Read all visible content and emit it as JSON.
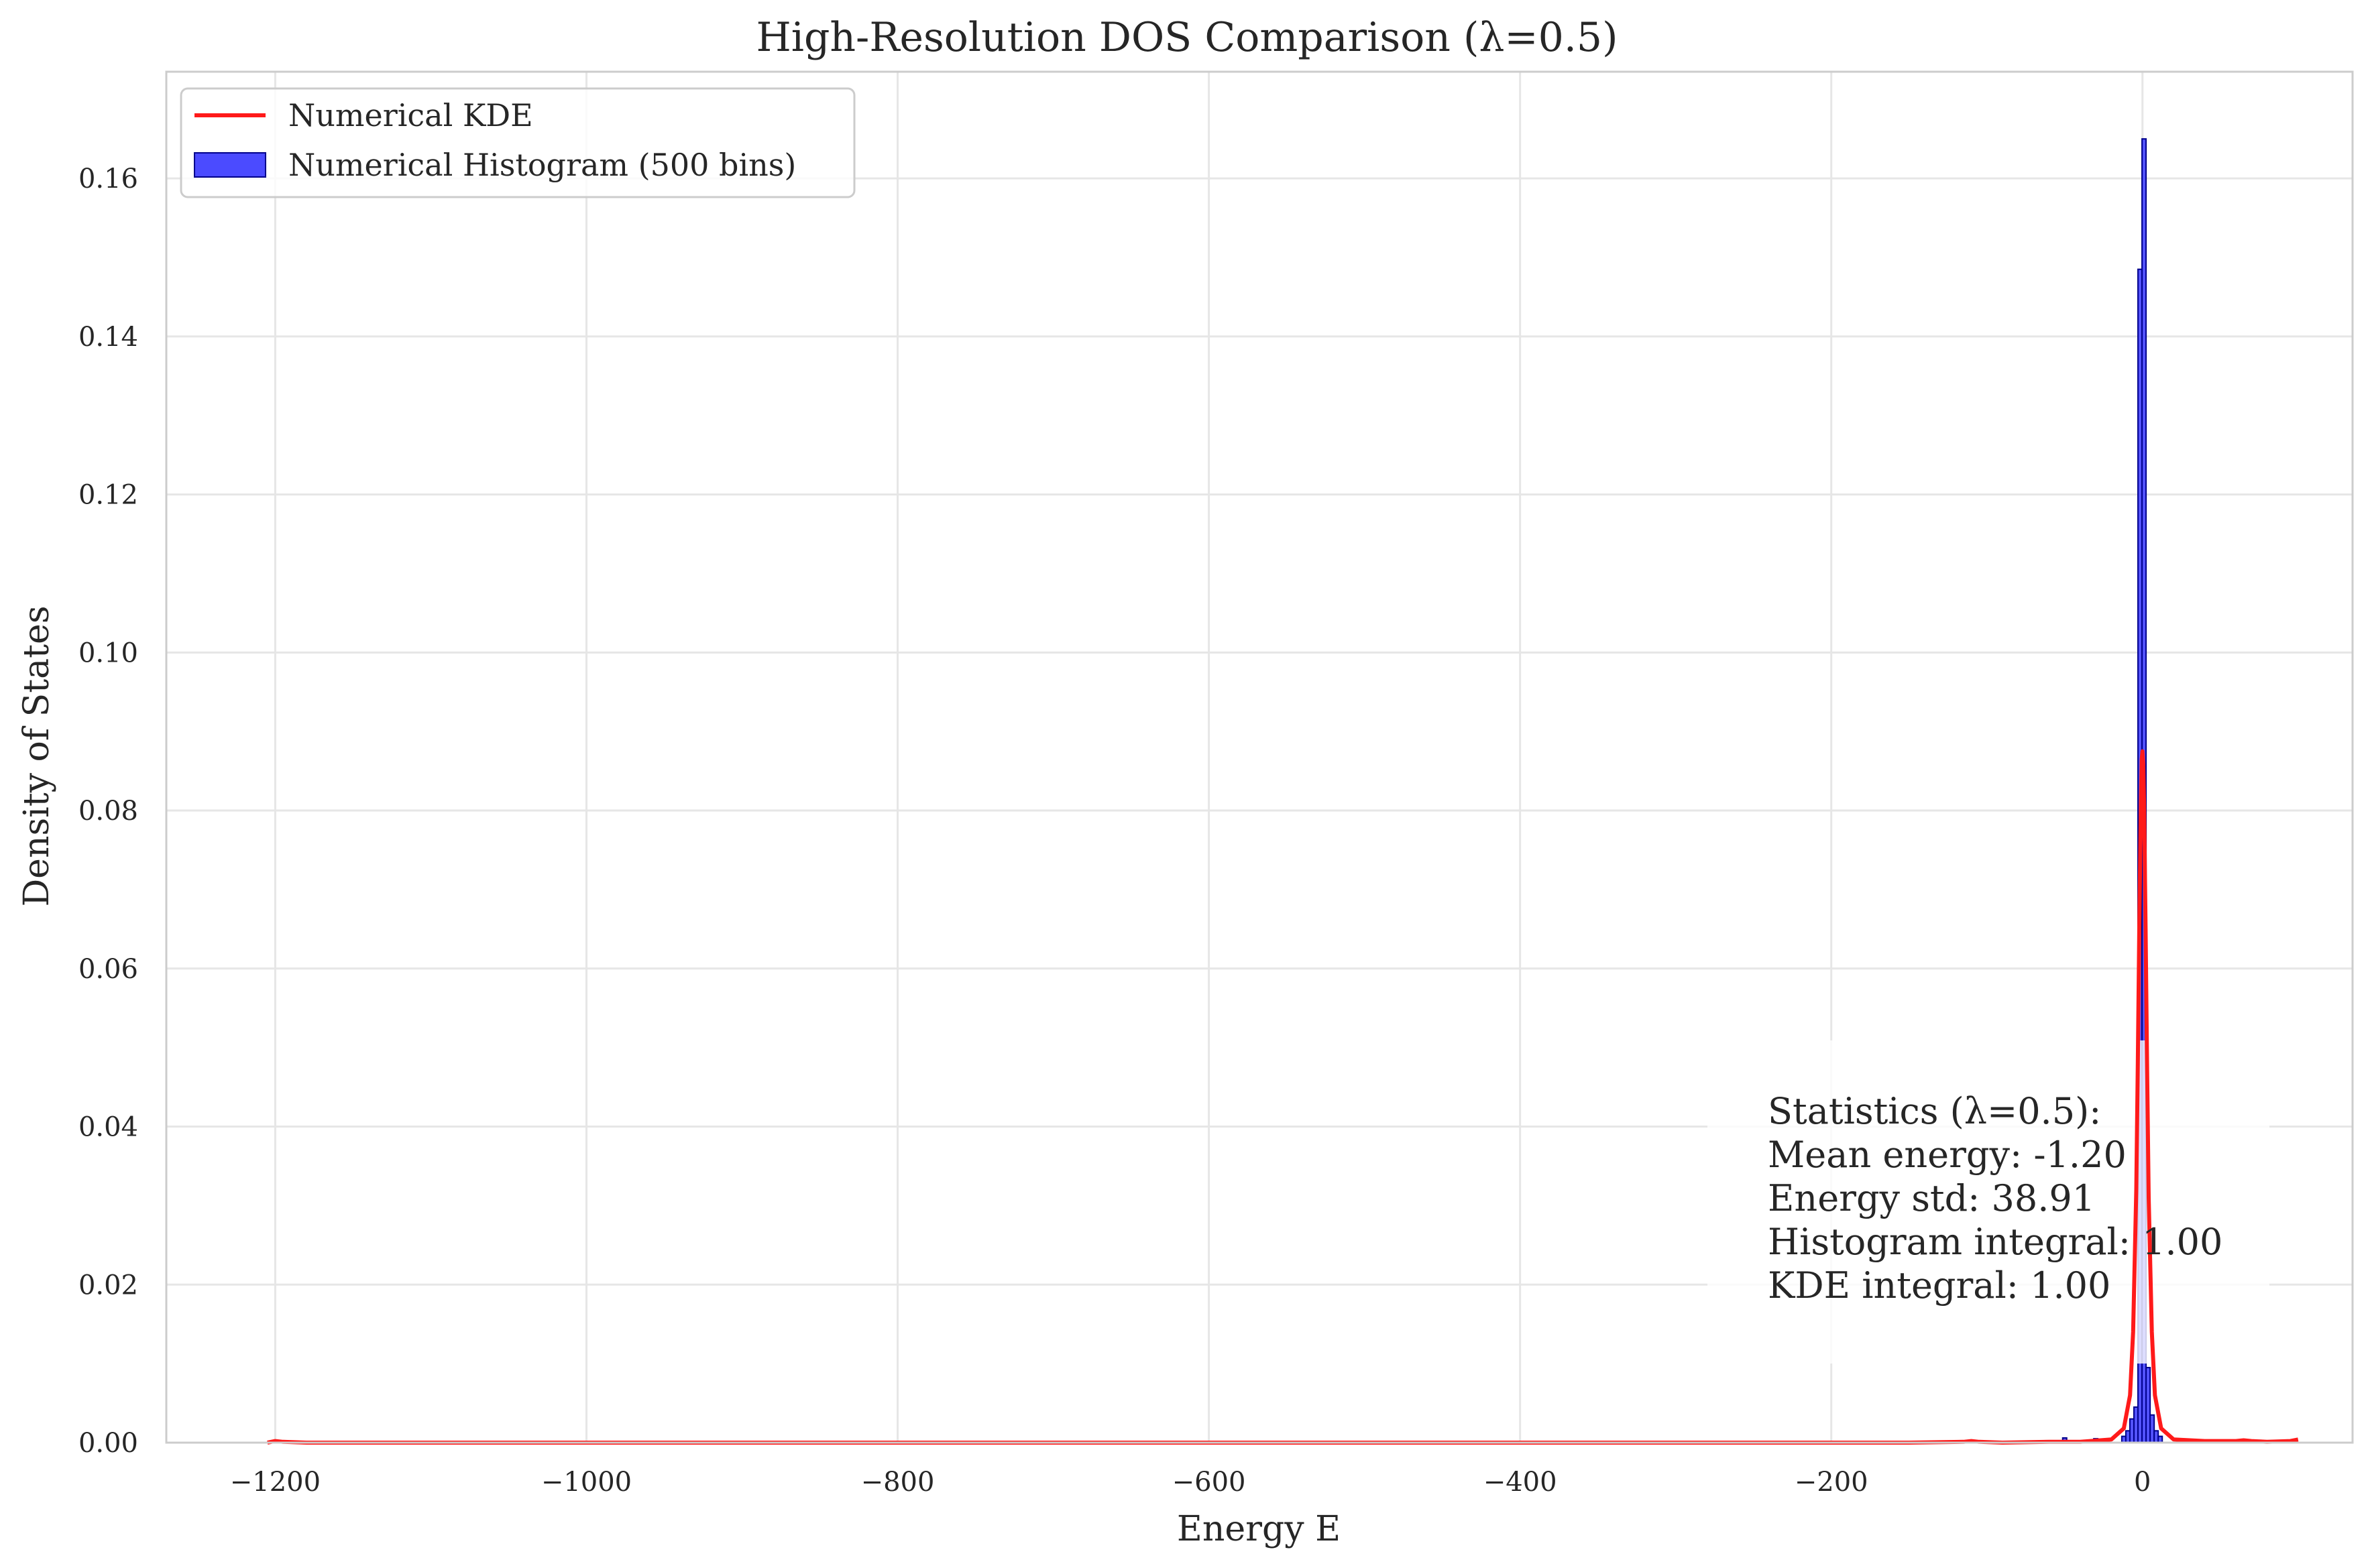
{
  "chart_data": {
    "type": "bar",
    "title": "High-Resolution DOS Comparison (λ=0.5)",
    "xlabel": "Energy E",
    "ylabel": "Density of States",
    "xlim": [
      -1270,
      135
    ],
    "ylim": [
      0.0,
      0.1735
    ],
    "xticks": [
      -1200,
      -1000,
      -800,
      -600,
      -400,
      -200,
      0
    ],
    "xtick_labels": [
      "−1200",
      "−1000",
      "−800",
      "−600",
      "−400",
      "−200",
      "0"
    ],
    "yticks": [
      0.0,
      0.02,
      0.04,
      0.06,
      0.08,
      0.1,
      0.12,
      0.14,
      0.16
    ],
    "ytick_labels": [
      "0.00",
      "0.02",
      "0.04",
      "0.06",
      "0.08",
      "0.10",
      "0.12",
      "0.14",
      "0.16"
    ],
    "grid": true,
    "legend_position": "top-left",
    "colors": {
      "kde": "#ff1a1a",
      "histogram_fill": "#4b4bff",
      "histogram_edge": "#00008b",
      "grid": "#e6e6e6",
      "axes_edge": "#cccccc"
    },
    "series": [
      {
        "name": "Numerical KDE",
        "type": "line",
        "x": [
          -1205,
          -1200,
          -1195,
          -1180,
          -1100,
          -800,
          -400,
          -150,
          -115,
          -110,
          -105,
          -90,
          -60,
          -40,
          -20,
          -12,
          -8,
          -6,
          -4,
          -3,
          -2,
          -1,
          -0.5,
          0,
          0.5,
          1,
          2,
          3,
          4,
          6,
          8,
          12,
          20,
          40,
          60,
          65,
          70,
          80,
          95,
          100
        ],
        "y": [
          0.0,
          0.0002,
          0.0001,
          0.0,
          0.0,
          0.0,
          0.0,
          0.0,
          0.0001,
          0.0002,
          0.0001,
          0.0,
          0.0001,
          0.0001,
          0.0004,
          0.0018,
          0.006,
          0.014,
          0.032,
          0.048,
          0.066,
          0.081,
          0.0865,
          0.0875,
          0.086,
          0.081,
          0.065,
          0.047,
          0.031,
          0.014,
          0.006,
          0.0018,
          0.0004,
          0.0002,
          0.0002,
          0.0003,
          0.0002,
          0.0001,
          0.0002,
          0.0004
        ]
      },
      {
        "name": "Numerical Histogram (500 bins)",
        "type": "histogram",
        "bin_width": 2.6,
        "bins": [
          {
            "x": -50,
            "y": 0.0006
          },
          {
            "x": -30,
            "y": 0.0005
          },
          {
            "x": -12,
            "y": 0.0008
          },
          {
            "x": -9.4,
            "y": 0.0015
          },
          {
            "x": -6.8,
            "y": 0.003
          },
          {
            "x": -4.2,
            "y": 0.0045
          },
          {
            "x": -1.6,
            "y": 0.1485
          },
          {
            "x": 1.0,
            "y": 0.165
          },
          {
            "x": 3.6,
            "y": 0.0095
          },
          {
            "x": 6.2,
            "y": 0.0035
          },
          {
            "x": 8.8,
            "y": 0.0015
          },
          {
            "x": 11.4,
            "y": 0.0008
          },
          {
            "x": 45,
            "y": 0.0002
          },
          {
            "x": 75,
            "y": 0.0003
          }
        ]
      }
    ],
    "annotation_lines": [
      "Statistics (λ=0.5):",
      "Mean energy: -1.20",
      "Energy std: 38.91",
      "Histogram integral: 1.00",
      "KDE integral: 1.00"
    ]
  }
}
